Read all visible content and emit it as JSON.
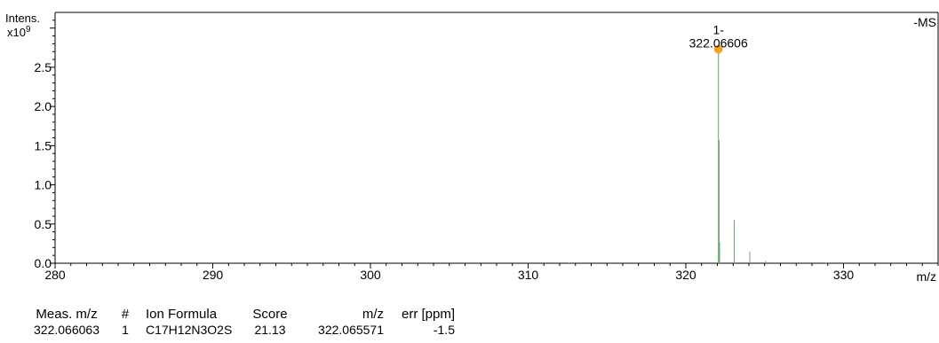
{
  "chart_data": {
    "type": "line",
    "title": "",
    "scan_mode_label": "-MS",
    "ylabel": "Intens.",
    "yscale_label": "x10",
    "yscale_exponent": "9",
    "xlabel": "m/z",
    "xlim": [
      280,
      336
    ],
    "ylim": [
      0,
      3.2
    ],
    "xticks": [
      280,
      290,
      300,
      310,
      320,
      330
    ],
    "yticks": [
      0.0,
      0.5,
      1.0,
      1.5,
      2.0,
      2.5
    ],
    "ytick_labels": [
      "0.0",
      "0.5",
      "1.0",
      "1.5",
      "2.0",
      "2.5"
    ],
    "peaks": [
      {
        "x": 312.6,
        "y": 0.008
      },
      {
        "x": 322.066,
        "y": 2.73
      },
      {
        "x": 322.11,
        "y": 1.57
      },
      {
        "x": 322.14,
        "y": 0.27
      },
      {
        "x": 323.07,
        "y": 0.55
      },
      {
        "x": 324.06,
        "y": 0.15
      },
      {
        "x": 325.07,
        "y": 0.03
      },
      {
        "x": 328.9,
        "y": 0.008
      }
    ],
    "annotation": {
      "x": 322.06606,
      "y": 2.73,
      "label_line1": "1-",
      "label_line2": "322.06606",
      "marker_color": "#f5a020"
    },
    "line_color": "#6aa86a"
  },
  "results_table": {
    "headers": [
      "Meas. m/z",
      "#",
      "Ion Formula",
      "Score",
      "m/z",
      "err [ppm]"
    ],
    "rows": [
      [
        "322.066063",
        "1",
        "C17H12N3O2S",
        "21.13",
        "322.065571",
        "-1.5"
      ]
    ]
  }
}
